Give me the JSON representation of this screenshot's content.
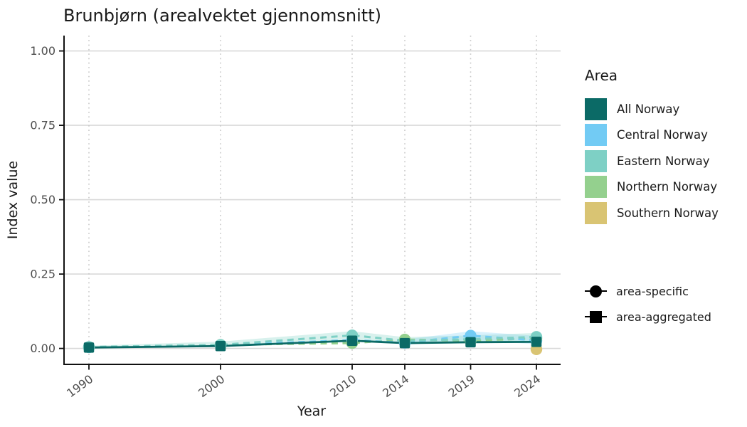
{
  "chart_data": {
    "type": "line",
    "title": "Brunbjørn (arealvektet gjennomsnitt)",
    "xlabel": "Year",
    "ylabel": "Index value",
    "x": [
      1990,
      2000,
      2010,
      2014,
      2019,
      2024
    ],
    "x_tick_labels": [
      "1990",
      "2000",
      "2010",
      "2014",
      "2019",
      "2024"
    ],
    "y_ticks": [
      0.0,
      0.25,
      0.5,
      0.75,
      1.0
    ],
    "y_tick_labels": [
      "0.00",
      "0.25",
      "0.50",
      "0.75",
      "1.00"
    ],
    "ylim": [
      -0.054,
      1.052
    ],
    "xlim": [
      1988.1,
      2025.8
    ],
    "grid": {
      "horizontal": "solid",
      "vertical": "dotted"
    },
    "legend_position": "right",
    "series": [
      {
        "name": "Southern Norway",
        "group": "area-specific",
        "marker": "circle",
        "line": "dashed",
        "color": "#d9c473",
        "values": [
          null,
          null,
          null,
          null,
          null,
          -0.003
        ]
      },
      {
        "name": "Northern Norway",
        "group": "area-specific",
        "marker": "circle",
        "line": "dashed",
        "color": "#94d08e",
        "values": [
          0.004,
          0.012,
          0.018,
          0.03,
          0.026,
          0.034
        ]
      },
      {
        "name": "Central Norway",
        "group": "area-specific",
        "marker": "circle",
        "line": "dashed",
        "color": "#72cbf4",
        "values": [
          0.004,
          0.011,
          0.028,
          0.019,
          0.043,
          0.027
        ]
      },
      {
        "name": "Eastern Norway",
        "group": "area-specific",
        "marker": "circle",
        "line": "dashed",
        "color": "#7ed0c5",
        "values": [
          0.005,
          0.012,
          0.044,
          0.026,
          0.031,
          0.039
        ]
      },
      {
        "name": "All Norway",
        "group": "area-aggregated",
        "marker": "square",
        "line": "solid",
        "color": "#0b6a66",
        "values": [
          0.003,
          0.008,
          0.026,
          0.018,
          0.021,
          0.022
        ]
      }
    ],
    "ribbons": [
      {
        "series": "Central Norway",
        "color": "#72cbf4",
        "opacity": 0.28,
        "x": [
          2014,
          2019,
          2024
        ],
        "lower": [
          0.012,
          0.028,
          0.014
        ],
        "upper": [
          0.03,
          0.058,
          0.042
        ]
      },
      {
        "series": "Eastern Norway",
        "color": "#7ed0c5",
        "opacity": 0.3,
        "x": [
          1990,
          2000,
          2010,
          2014,
          2019,
          2024
        ],
        "lower": [
          0.001,
          0.005,
          0.024,
          0.015,
          0.019,
          0.023
        ],
        "upper": [
          0.009,
          0.023,
          0.058,
          0.038,
          0.044,
          0.052
        ]
      }
    ]
  },
  "legend": {
    "area_title": "Area",
    "items": [
      {
        "label": "All Norway",
        "color": "#0b6a66"
      },
      {
        "label": "Central Norway",
        "color": "#72cbf4"
      },
      {
        "label": "Eastern Norway",
        "color": "#7ed0c5"
      },
      {
        "label": "Northern Norway",
        "color": "#94d08e"
      },
      {
        "label": "Southern Norway",
        "color": "#d9c473"
      }
    ],
    "shape_items": [
      {
        "label": "area-specific",
        "glyph": "circle"
      },
      {
        "label": "area-aggregated",
        "glyph": "square"
      }
    ]
  },
  "colors": {
    "grid": "#d9d9d9",
    "grid_dotted": "#c8c8c8",
    "axis": "#111111",
    "tick_label": "#4d4d4d",
    "text": "#1a1a1a",
    "background": "#ffffff"
  }
}
